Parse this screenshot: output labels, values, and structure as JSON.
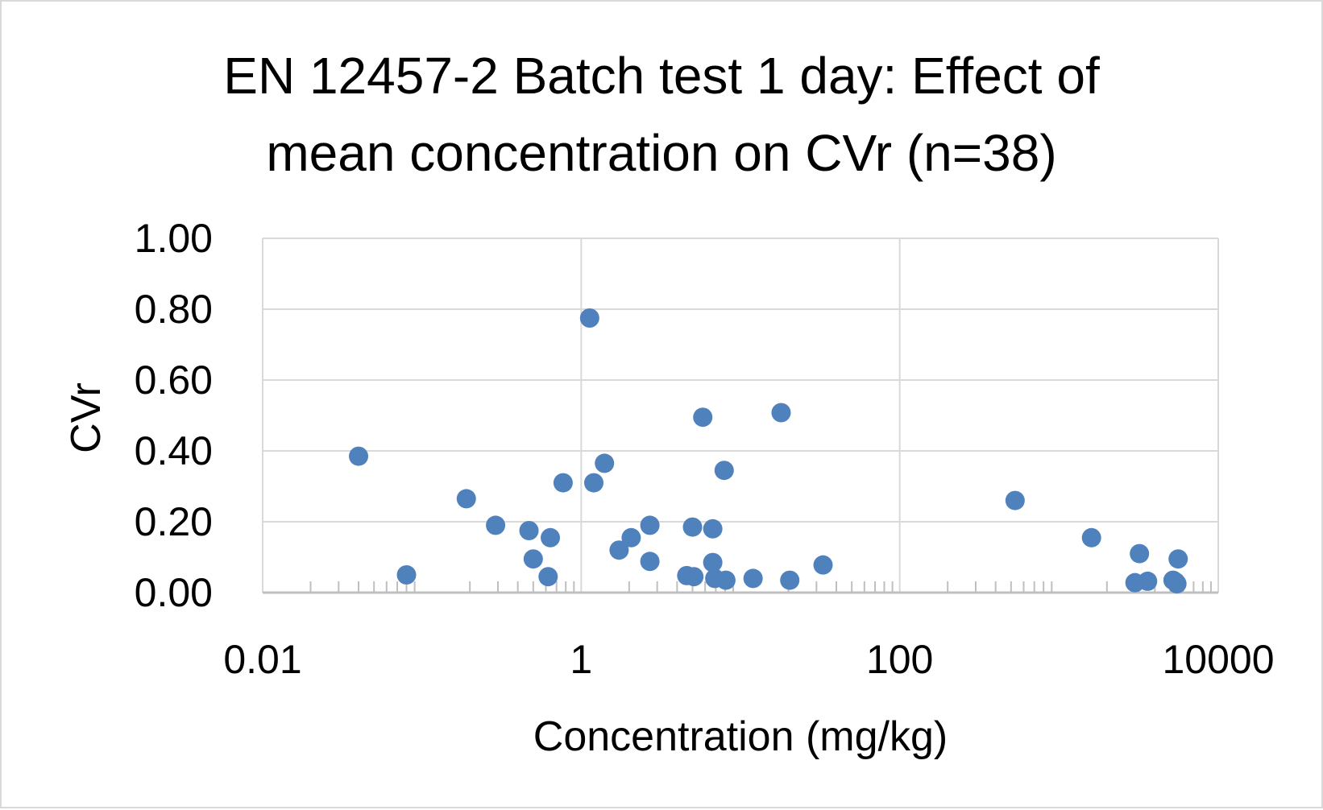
{
  "chart_data": {
    "type": "scatter",
    "title_lines": [
      "EN 12457-2 Batch test 1 day: Effect of",
      "mean concentration on CVr (n=38)"
    ],
    "xlabel": "Concentration (mg/kg)",
    "ylabel": "CVr",
    "x_scale": "log10",
    "xlim": [
      0.01,
      10000
    ],
    "ylim": [
      0,
      1
    ],
    "x_tick_labels": [
      "0.01",
      "1",
      "100",
      "10000"
    ],
    "y_tick_labels": [
      "0.00",
      "0.20",
      "0.40",
      "0.60",
      "0.80",
      "1.00"
    ],
    "grid": true,
    "legend": "none",
    "marker_color": "#4f81bd",
    "points": [
      {
        "x": 0.04,
        "y": 0.385
      },
      {
        "x": 0.08,
        "y": 0.05
      },
      {
        "x": 0.19,
        "y": 0.265
      },
      {
        "x": 0.29,
        "y": 0.19
      },
      {
        "x": 0.47,
        "y": 0.175
      },
      {
        "x": 0.5,
        "y": 0.095
      },
      {
        "x": 0.62,
        "y": 0.045
      },
      {
        "x": 0.64,
        "y": 0.155
      },
      {
        "x": 0.77,
        "y": 0.31
      },
      {
        "x": 1.13,
        "y": 0.775
      },
      {
        "x": 1.2,
        "y": 0.31
      },
      {
        "x": 1.4,
        "y": 0.365
      },
      {
        "x": 1.73,
        "y": 0.12
      },
      {
        "x": 2.06,
        "y": 0.155
      },
      {
        "x": 2.7,
        "y": 0.19
      },
      {
        "x": 2.7,
        "y": 0.088
      },
      {
        "x": 4.6,
        "y": 0.048
      },
      {
        "x": 5.0,
        "y": 0.185
      },
      {
        "x": 5.1,
        "y": 0.045
      },
      {
        "x": 5.8,
        "y": 0.495
      },
      {
        "x": 6.7,
        "y": 0.18
      },
      {
        "x": 6.7,
        "y": 0.085
      },
      {
        "x": 6.9,
        "y": 0.04
      },
      {
        "x": 7.9,
        "y": 0.345
      },
      {
        "x": 8.1,
        "y": 0.035
      },
      {
        "x": 12.0,
        "y": 0.04
      },
      {
        "x": 18.0,
        "y": 0.508
      },
      {
        "x": 20.4,
        "y": 0.035
      },
      {
        "x": 33.0,
        "y": 0.078
      },
      {
        "x": 530.0,
        "y": 0.26
      },
      {
        "x": 1600.0,
        "y": 0.155
      },
      {
        "x": 3200.0,
        "y": 0.11
      },
      {
        "x": 3000.0,
        "y": 0.028
      },
      {
        "x": 3600.0,
        "y": 0.032
      },
      {
        "x": 5600.0,
        "y": 0.095
      },
      {
        "x": 5200.0,
        "y": 0.035
      },
      {
        "x": 5500.0,
        "y": 0.025
      },
      {
        "x": 5400.0,
        "y": 0.03
      }
    ]
  }
}
